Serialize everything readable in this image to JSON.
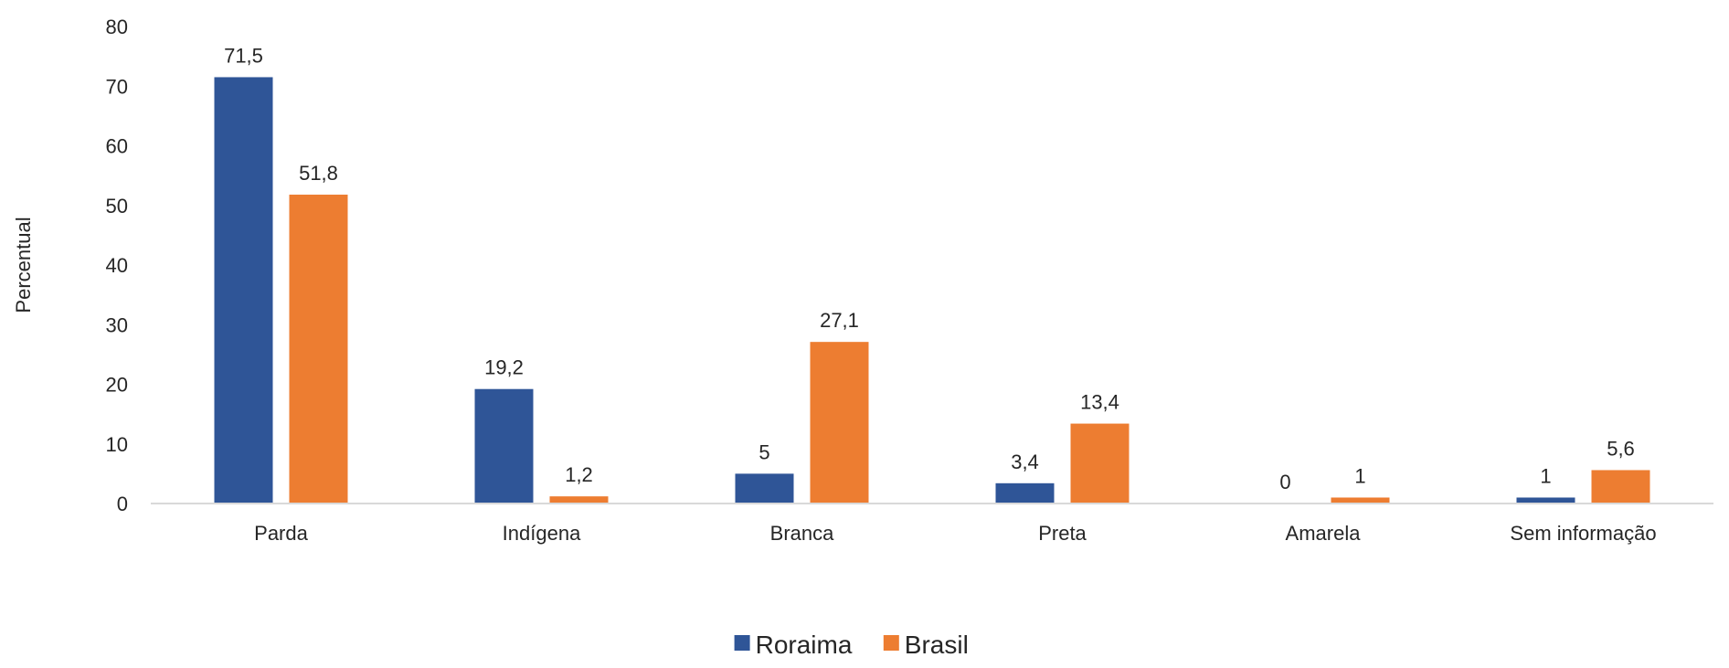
{
  "chart_data": {
    "type": "bar",
    "categories": [
      "Parda",
      "Indígena",
      "Branca",
      "Preta",
      "Amarela",
      "Sem informação"
    ],
    "series": [
      {
        "name": "Roraima",
        "values": [
          71.5,
          19.2,
          5,
          3.4,
          0,
          1
        ],
        "labels": [
          "71,5",
          "19,2",
          "5",
          "3,4",
          "0",
          "1"
        ],
        "color": "#2F5597"
      },
      {
        "name": "Brasil",
        "values": [
          51.8,
          1.2,
          27.1,
          13.4,
          1,
          5.6
        ],
        "labels": [
          "51,8",
          "1,2",
          "27,1",
          "13,4",
          "1",
          "5,6"
        ],
        "color": "#ED7D31"
      }
    ],
    "title": "",
    "xlabel": "",
    "ylabel": "Percentual",
    "ylim": [
      0,
      80
    ],
    "yticks": [
      0,
      10,
      20,
      30,
      40,
      50,
      60,
      70,
      80
    ],
    "grid": false,
    "legend_position": "bottom"
  }
}
